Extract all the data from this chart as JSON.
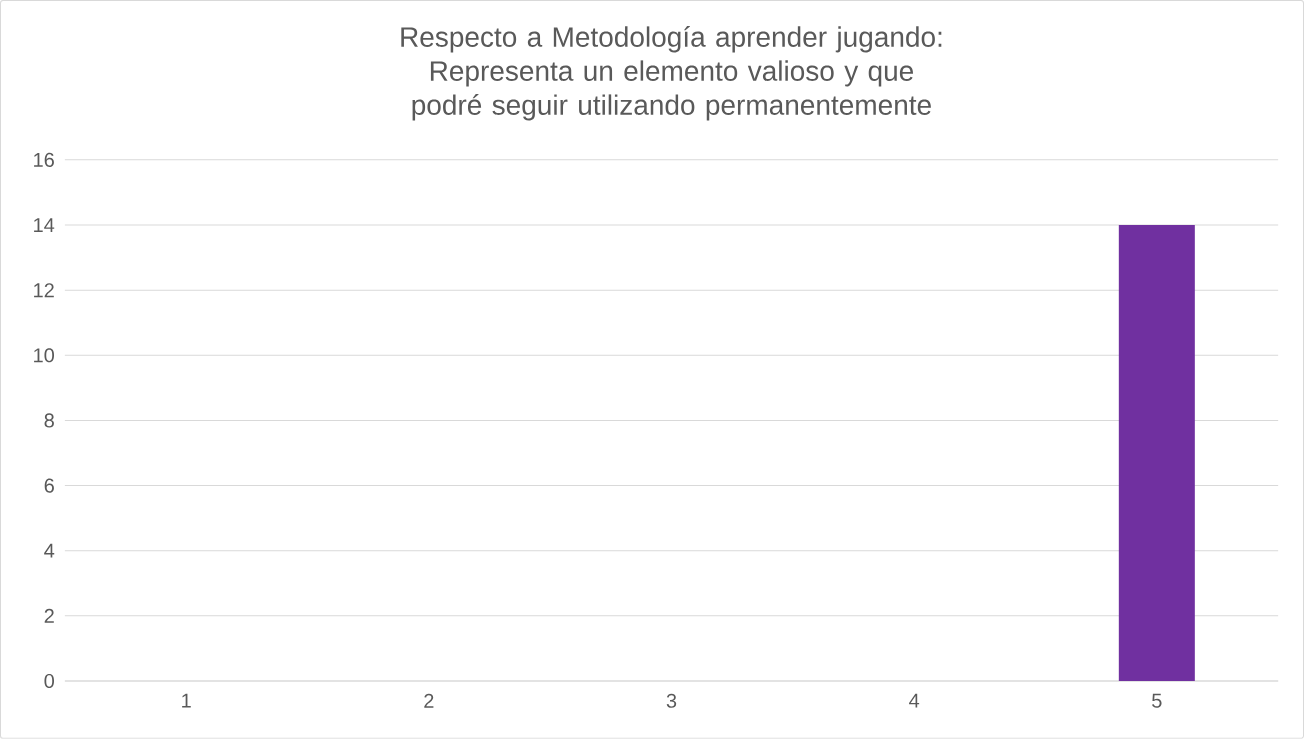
{
  "chart_data": {
    "type": "bar",
    "title": "Respecto a Metodología aprender jugando:",
    "subtitle": "Representa un elemento valioso y que podré seguir utilizando permanentemente",
    "categories": [
      "1",
      "2",
      "3",
      "4",
      "5"
    ],
    "values": [
      0,
      0,
      0,
      0,
      14
    ],
    "color": "#7030a0",
    "ylim": [
      0,
      16
    ],
    "yticks": [
      0,
      2,
      4,
      6,
      8,
      10,
      12,
      14,
      16
    ],
    "grid": "y"
  }
}
